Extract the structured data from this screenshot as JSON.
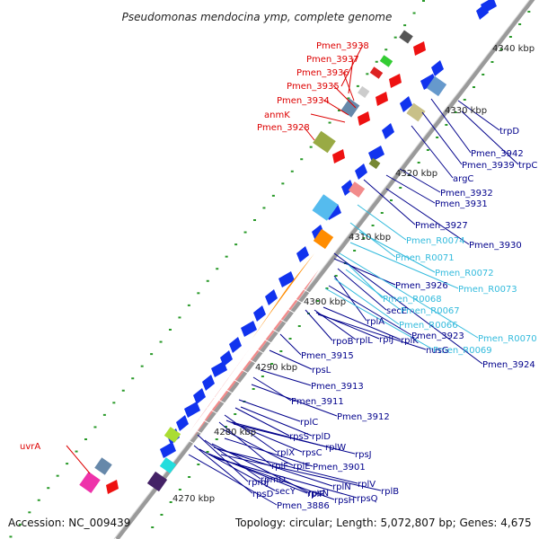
{
  "title": "Pseudomonas mendocina ymp, complete genome",
  "footer": {
    "accession": "Accession: NC_009439",
    "topology": "Topology: circular; Length: 5,072,807 bp; Genes: 4,675"
  },
  "colors": {
    "red": "#dd0000",
    "blue": "#00008b",
    "cyan": "#33bbdd",
    "green": "#228822",
    "backbone": "#999999"
  },
  "ticks": [
    {
      "text": "4340 kbp"
    },
    {
      "text": "4330 kbp"
    },
    {
      "text": "4320 kbp"
    },
    {
      "text": "4310 kbp"
    },
    {
      "text": "4300 kbp"
    },
    {
      "text": "4290 kbp"
    },
    {
      "text": "4280 kbp"
    },
    {
      "text": "4270 kbp"
    }
  ],
  "labels": [
    {
      "text": "Pmen_3938",
      "color": "red"
    },
    {
      "text": "Pmen_3937",
      "color": "red"
    },
    {
      "text": "Pmen_3936",
      "color": "red"
    },
    {
      "text": "Pmen_3935",
      "color": "red"
    },
    {
      "text": "Pmen_3934",
      "color": "red"
    },
    {
      "text": "anmK",
      "color": "red"
    },
    {
      "text": "Pmen_3928",
      "color": "red"
    },
    {
      "text": "uvrA",
      "color": "red"
    },
    {
      "text": "trpD",
      "color": "blue"
    },
    {
      "text": "Pmen_3942",
      "color": "blue"
    },
    {
      "text": "Pmen_3939",
      "color": "blue"
    },
    {
      "text": "trpC",
      "color": "blue"
    },
    {
      "text": "argC",
      "color": "blue"
    },
    {
      "text": "Pmen_3932",
      "color": "blue"
    },
    {
      "text": "Pmen_3931",
      "color": "blue"
    },
    {
      "text": "Pmen_3927",
      "color": "blue"
    },
    {
      "text": "Pmen_R0074",
      "color": "cyan"
    },
    {
      "text": "Pmen_3930",
      "color": "blue"
    },
    {
      "text": "Pmen_R0071",
      "color": "cyan"
    },
    {
      "text": "Pmen_R0072",
      "color": "cyan"
    },
    {
      "text": "Pmen_R0073",
      "color": "cyan"
    },
    {
      "text": "Pmen_3926",
      "color": "blue"
    },
    {
      "text": "Pmen_R0068",
      "color": "cyan"
    },
    {
      "text": "secE",
      "color": "blue"
    },
    {
      "text": "Pmen_R0067",
      "color": "cyan"
    },
    {
      "text": "rplA",
      "color": "blue"
    },
    {
      "text": "Pmen_R0066",
      "color": "cyan"
    },
    {
      "text": "Pmen_R0070",
      "color": "cyan"
    },
    {
      "text": "Pmen_3923",
      "color": "blue"
    },
    {
      "text": "Pmen_R0069",
      "color": "cyan"
    },
    {
      "text": "rpoB",
      "color": "blue"
    },
    {
      "text": "rplL",
      "color": "blue"
    },
    {
      "text": "rplJ",
      "color": "blue"
    },
    {
      "text": "rplK",
      "color": "blue"
    },
    {
      "text": "nusG",
      "color": "blue"
    },
    {
      "text": "Pmen_3924",
      "color": "blue"
    },
    {
      "text": "Pmen_3915",
      "color": "blue"
    },
    {
      "text": "rpsL",
      "color": "blue"
    },
    {
      "text": "Pmen_3913",
      "color": "blue"
    },
    {
      "text": "Pmen_3911",
      "color": "blue"
    },
    {
      "text": "Pmen_3912",
      "color": "blue"
    },
    {
      "text": "rplC",
      "color": "blue"
    },
    {
      "text": "rpsS",
      "color": "blue"
    },
    {
      "text": "rplD",
      "color": "blue"
    },
    {
      "text": "rplX",
      "color": "blue"
    },
    {
      "text": "rpsC",
      "color": "blue"
    },
    {
      "text": "rplW",
      "color": "blue"
    },
    {
      "text": "rpsJ",
      "color": "blue"
    },
    {
      "text": "rplF",
      "color": "blue"
    },
    {
      "text": "rplE",
      "color": "blue"
    },
    {
      "text": "Pmen_3901",
      "color": "blue"
    },
    {
      "text": "rpmJ",
      "color": "blue"
    },
    {
      "text": "rpmD",
      "color": "blue"
    },
    {
      "text": "rpsN",
      "color": "blue"
    },
    {
      "text": "rplN",
      "color": "blue"
    },
    {
      "text": "rplV",
      "color": "blue"
    },
    {
      "text": "rplB",
      "color": "blue"
    },
    {
      "text": "rpsD",
      "color": "blue"
    },
    {
      "text": "secY",
      "color": "blue"
    },
    {
      "text": "rplR",
      "color": "blue"
    },
    {
      "text": "rpsH",
      "color": "blue"
    },
    {
      "text": "rpsQ",
      "color": "blue"
    },
    {
      "text": "Pmen_3886",
      "color": "blue"
    }
  ]
}
